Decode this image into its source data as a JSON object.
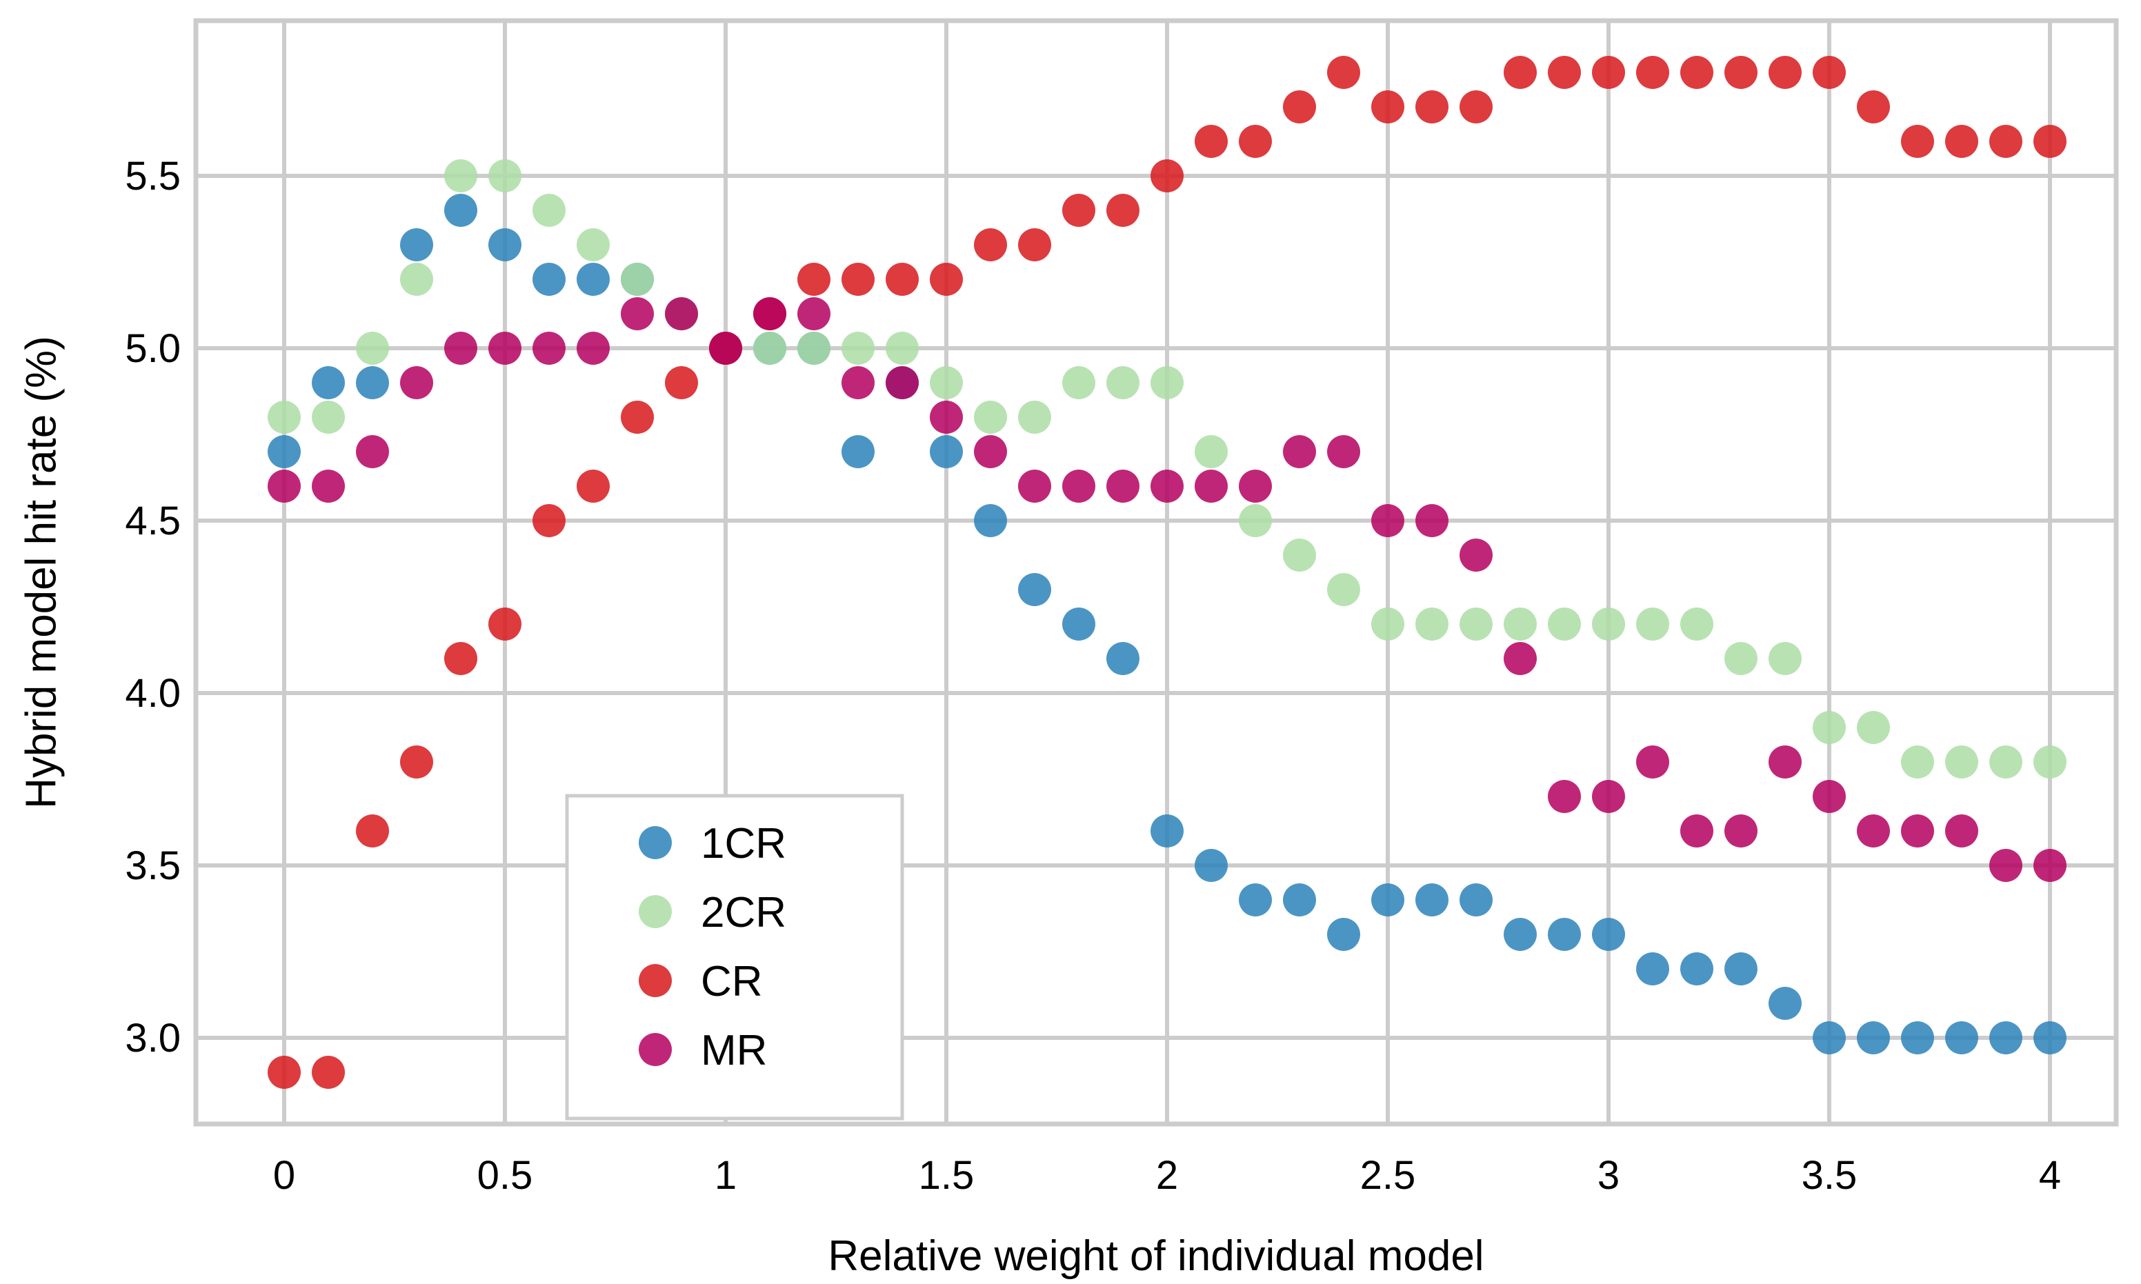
{
  "chart_data": {
    "type": "scatter",
    "xlabel": "Relative weight of individual model",
    "ylabel": "Hybrid model hit rate (%)",
    "xlim": [
      -0.2,
      4.15
    ],
    "ylim": [
      2.75,
      5.95
    ],
    "xticks": [
      0,
      0.5,
      1,
      1.5,
      2,
      2.5,
      3,
      3.5,
      4
    ],
    "xtick_labels": [
      "0",
      "0.5",
      "1",
      "1.5",
      "2",
      "2.5",
      "3",
      "3.5",
      "4"
    ],
    "yticks": [
      3.0,
      3.5,
      4.0,
      4.5,
      5.0,
      5.5
    ],
    "ytick_labels": [
      "3.0",
      "3.5",
      "4.0",
      "4.5",
      "5.0",
      "5.5"
    ],
    "grid": true,
    "legend_position": "bottom-center-left",
    "x": [
      0,
      0.1,
      0.2,
      0.3,
      0.4,
      0.5,
      0.6,
      0.7,
      0.8,
      0.9,
      1.0,
      1.1,
      1.2,
      1.3,
      1.4,
      1.5,
      1.6,
      1.7,
      1.8,
      1.9,
      2.0,
      2.1,
      2.2,
      2.3,
      2.4,
      2.5,
      2.6,
      2.7,
      2.8,
      2.9,
      3.0,
      3.1,
      3.2,
      3.3,
      3.4,
      3.5,
      3.6,
      3.7,
      3.8,
      3.9,
      4.0
    ],
    "series": [
      {
        "name": "1CR",
        "color": "#2b83ba",
        "values": [
          4.7,
          4.9,
          4.9,
          5.3,
          5.4,
          5.3,
          5.2,
          5.2,
          5.2,
          5.1,
          5.0,
          5.0,
          5.0,
          4.7,
          4.9,
          4.7,
          4.5,
          4.3,
          4.2,
          4.1,
          3.6,
          3.5,
          3.4,
          3.4,
          3.3,
          3.4,
          3.4,
          3.4,
          3.3,
          3.3,
          3.3,
          3.2,
          3.2,
          3.2,
          3.1,
          3.0,
          3.0,
          3.0,
          3.0,
          3.0,
          3.0
        ]
      },
      {
        "name": "2CR",
        "color": "#abdda4",
        "values": [
          4.8,
          4.8,
          5.0,
          5.2,
          5.5,
          5.5,
          5.4,
          5.3,
          5.2,
          5.1,
          5.0,
          5.0,
          5.0,
          5.0,
          5.0,
          4.9,
          4.8,
          4.8,
          4.9,
          4.9,
          4.9,
          4.7,
          4.5,
          4.4,
          4.3,
          4.2,
          4.2,
          4.2,
          4.2,
          4.2,
          4.2,
          4.2,
          4.2,
          4.1,
          4.1,
          3.9,
          3.9,
          3.8,
          3.8,
          3.8,
          3.8
        ]
      },
      {
        "name": "CR",
        "color": "#d7191c",
        "values": [
          2.9,
          2.9,
          3.6,
          3.8,
          4.1,
          4.2,
          4.5,
          4.6,
          4.8,
          4.9,
          5.0,
          5.1,
          5.2,
          5.2,
          5.2,
          5.2,
          5.3,
          5.3,
          5.4,
          5.4,
          5.5,
          5.6,
          5.6,
          5.7,
          5.8,
          5.7,
          5.7,
          5.7,
          5.8,
          5.8,
          5.8,
          5.8,
          5.8,
          5.8,
          5.8,
          5.8,
          5.7,
          5.6,
          5.6,
          5.6,
          5.6
        ]
      },
      {
        "name": "MR",
        "color": "#b5005f",
        "values": [
          4.6,
          4.6,
          4.7,
          4.9,
          5.0,
          5.0,
          5.0,
          5.0,
          5.1,
          5.1,
          5.0,
          5.1,
          5.1,
          4.9,
          4.9,
          4.8,
          4.7,
          4.6,
          4.6,
          4.6,
          4.6,
          4.6,
          4.6,
          4.7,
          4.7,
          4.5,
          4.5,
          4.4,
          4.1,
          3.7,
          3.7,
          3.8,
          3.6,
          3.6,
          3.8,
          3.7,
          3.6,
          3.6,
          3.6,
          3.5,
          3.5
        ]
      }
    ]
  }
}
